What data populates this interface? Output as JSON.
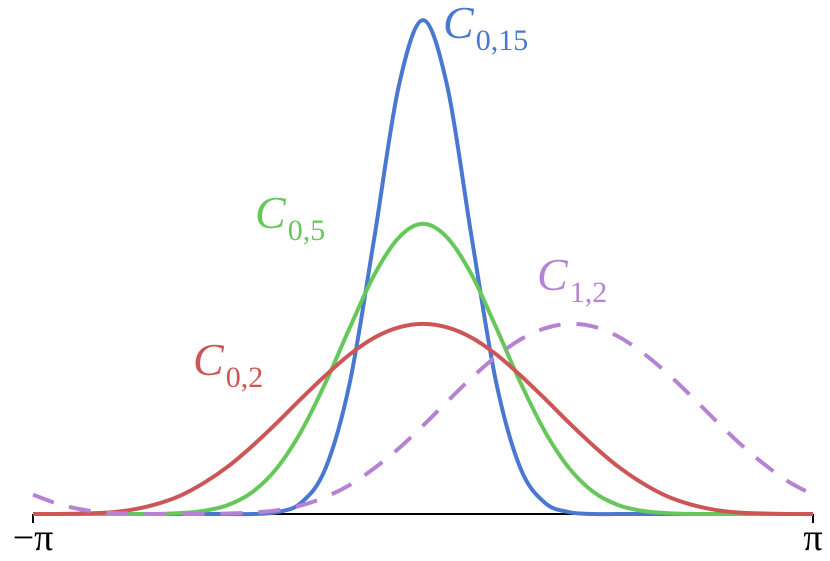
{
  "chart_data": {
    "type": "line",
    "x": [
      -3.142,
      -2.945,
      -2.749,
      -2.553,
      -2.356,
      -2.16,
      -1.963,
      -1.767,
      -1.571,
      -1.374,
      -1.178,
      -0.982,
      -0.785,
      -0.589,
      -0.393,
      -0.196,
      0,
      0.196,
      0.393,
      0.589,
      0.785,
      0.982,
      1.178,
      1.374,
      1.571,
      1.767,
      1.963,
      2.16,
      2.356,
      2.553,
      2.749,
      2.945,
      3.142
    ],
    "series": [
      {
        "name": "C",
        "subscript": "0,15",
        "color": "#4a78d0",
        "dashed": false,
        "values": [
          0,
          0,
          0,
          0,
          0,
          0,
          0,
          0,
          0,
          0,
          0.004,
          0.025,
          0.102,
          0.294,
          0.615,
          0.953,
          1.101,
          0.953,
          0.615,
          0.294,
          0.102,
          0.025,
          0.004,
          0,
          0,
          0,
          0,
          0,
          0,
          0,
          0,
          0,
          0
        ]
      },
      {
        "name": "C",
        "subscript": "0,5",
        "color": "#66c75a",
        "dashed": false,
        "values": [
          0,
          0,
          0,
          0,
          0,
          0,
          0.002,
          0.007,
          0.02,
          0.049,
          0.102,
          0.184,
          0.293,
          0.416,
          0.533,
          0.616,
          0.647,
          0.616,
          0.533,
          0.416,
          0.293,
          0.184,
          0.102,
          0.049,
          0.02,
          0.007,
          0.002,
          0,
          0,
          0,
          0,
          0,
          0
        ]
      },
      {
        "name": "C",
        "subscript": "0,2",
        "color": "#cc5656",
        "dashed": false,
        "values": [
          0,
          0,
          0.001,
          0.003,
          0.009,
          0.021,
          0.04,
          0.069,
          0.106,
          0.152,
          0.203,
          0.257,
          0.309,
          0.356,
          0.393,
          0.416,
          0.424,
          0.416,
          0.393,
          0.356,
          0.309,
          0.257,
          0.203,
          0.152,
          0.106,
          0.069,
          0.04,
          0.021,
          0.009,
          0.003,
          0.001,
          0,
          0
        ]
      },
      {
        "name": "C",
        "subscript": "1,2",
        "color": "#b683d2",
        "dashed": true,
        "values": [
          0.043,
          0.023,
          0.01,
          0.003,
          0.001,
          0,
          0,
          0,
          0.001,
          0.003,
          0.008,
          0.019,
          0.038,
          0.065,
          0.102,
          0.146,
          0.197,
          0.251,
          0.304,
          0.351,
          0.389,
          0.414,
          0.424,
          0.418,
          0.396,
          0.36,
          0.315,
          0.263,
          0.209,
          0.157,
          0.111,
          0.072,
          0.043
        ]
      }
    ],
    "xlim": [
      -3.142,
      3.142
    ],
    "xticks": [
      {
        "value": -3.142,
        "label": "−π"
      },
      {
        "value": 3.142,
        "label": "π"
      }
    ],
    "ylim": [
      0,
      1.146
    ]
  }
}
